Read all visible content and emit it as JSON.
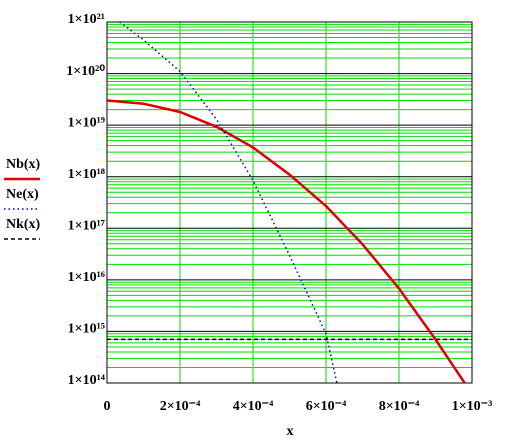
{
  "chart_data": {
    "type": "line",
    "xlabel": "x",
    "xlim": [
      0,
      0.001
    ],
    "ylim": [
      100000000000000.0,
      1e+21
    ],
    "ylog": true,
    "grid": true,
    "legend": "left",
    "xticks": [
      0,
      {
        "value": 0.0002,
        "label": "2×10⁻⁴"
      },
      {
        "value": 0.0004,
        "label": "4×10⁻⁴"
      },
      {
        "value": 0.0006,
        "label": "6×10⁻⁴"
      },
      {
        "value": 0.0008,
        "label": "8×10⁻⁴"
      },
      {
        "value": 0.001,
        "label": "1×10⁻³"
      }
    ],
    "yticks": [
      {
        "value": 100000000000000.0,
        "label": "1×10¹⁴"
      },
      {
        "value": 1000000000000000.0,
        "label": "1×10¹⁵"
      },
      {
        "value": 1e+16,
        "label": "1×10¹⁶"
      },
      {
        "value": 1e+17,
        "label": "1×10¹⁷"
      },
      {
        "value": 1e+18,
        "label": "1×10¹⁸"
      },
      {
        "value": 1e+19,
        "label": "1×10¹⁹"
      },
      {
        "value": 1e+20,
        "label": "1×10²⁰"
      },
      {
        "value": 1e+21,
        "label": "1×10²¹"
      }
    ],
    "series": [
      {
        "name": "Nb(x)",
        "color": "#e00000",
        "style": "solid",
        "x": [
          0,
          0.0001,
          0.0002,
          0.0003,
          0.0004,
          0.0005,
          0.0006,
          0.0007,
          0.0008,
          0.0009,
          0.00098
        ],
        "values": [
          3e+19,
          2.6e+19,
          1.8e+19,
          9.3e+18,
          3.7e+18,
          1.1e+18,
          2.7e+17,
          4.9e+16,
          6800000000000000.0,
          700000000000000.0,
          100000000000000.0
        ]
      },
      {
        "name": "Ne(x)",
        "color": "#0000c0",
        "style": "dotted",
        "x": [
          3.5e-05,
          0.0001,
          0.0002,
          0.0003,
          0.0004,
          0.0005,
          0.0006,
          0.00063
        ],
        "values": [
          1e+21,
          4.5e+20,
          1.1e+20,
          1.3e+19,
          8.5e+17,
          3e+16,
          900000000000000.0,
          100000000000000.0
        ]
      },
      {
        "name": "Nk(x)",
        "color": "#000000",
        "style": "dashed",
        "x": [
          0,
          0.001
        ],
        "values": [
          700000000000000.0,
          700000000000000.0
        ]
      }
    ]
  }
}
